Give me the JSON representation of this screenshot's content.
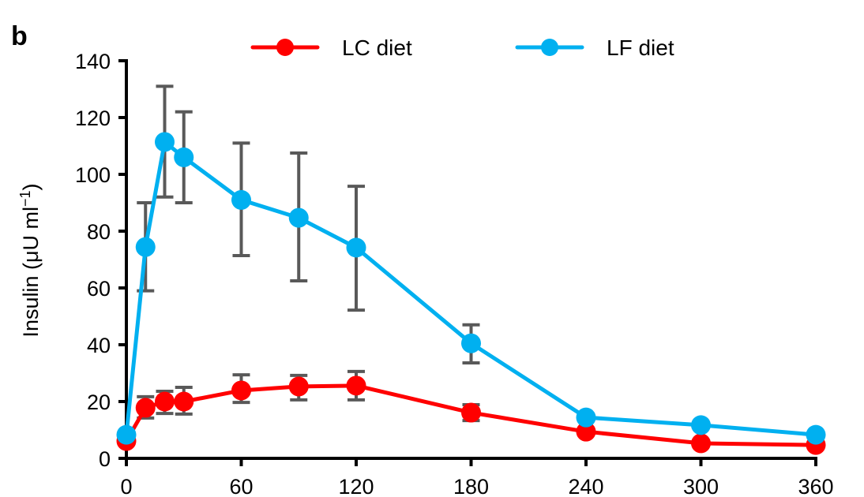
{
  "chart_data": {
    "type": "line",
    "panel_label": "b",
    "title": "",
    "xlabel": "",
    "ylabel_main": "Insulin (μU ml",
    "ylabel_sup": "−1",
    "ylabel_close": ")",
    "xlim": [
      0,
      360
    ],
    "ylim": [
      0,
      140
    ],
    "xticks": [
      0,
      60,
      120,
      180,
      240,
      300,
      360
    ],
    "yticks": [
      0,
      20,
      40,
      60,
      80,
      100,
      120,
      140
    ],
    "grid": false,
    "legend_position": "top-center",
    "x": [
      0,
      10,
      20,
      30,
      60,
      90,
      120,
      180,
      240,
      300,
      360
    ],
    "series": [
      {
        "name": "LC diet",
        "color": "#ff0000",
        "values": [
          6.1,
          17.8,
          20,
          20,
          23.9,
          25.3,
          25.6,
          16.1,
          9.4,
          5.3,
          4.7
        ],
        "error_upper": [
          null,
          21.7,
          23.6,
          25,
          29.4,
          29.2,
          30.6,
          18.9,
          null,
          null,
          null
        ],
        "error_lower": [
          null,
          14.2,
          15.8,
          15.6,
          19.7,
          20.6,
          20.6,
          13.3,
          null,
          null,
          null
        ]
      },
      {
        "name": "LF diet",
        "color": "#00b0f0",
        "values": [
          8.3,
          74.4,
          111.4,
          106,
          91,
          84.7,
          74.2,
          40.5,
          14.4,
          11.7,
          8.3
        ],
        "error_upper": [
          null,
          90,
          131,
          122,
          111,
          107.5,
          95.8,
          47,
          null,
          null,
          null
        ],
        "error_lower": [
          null,
          59,
          92,
          90,
          71.4,
          62.5,
          52.2,
          33.6,
          null,
          null,
          null
        ]
      }
    ],
    "error_bar_color": "#595959"
  }
}
